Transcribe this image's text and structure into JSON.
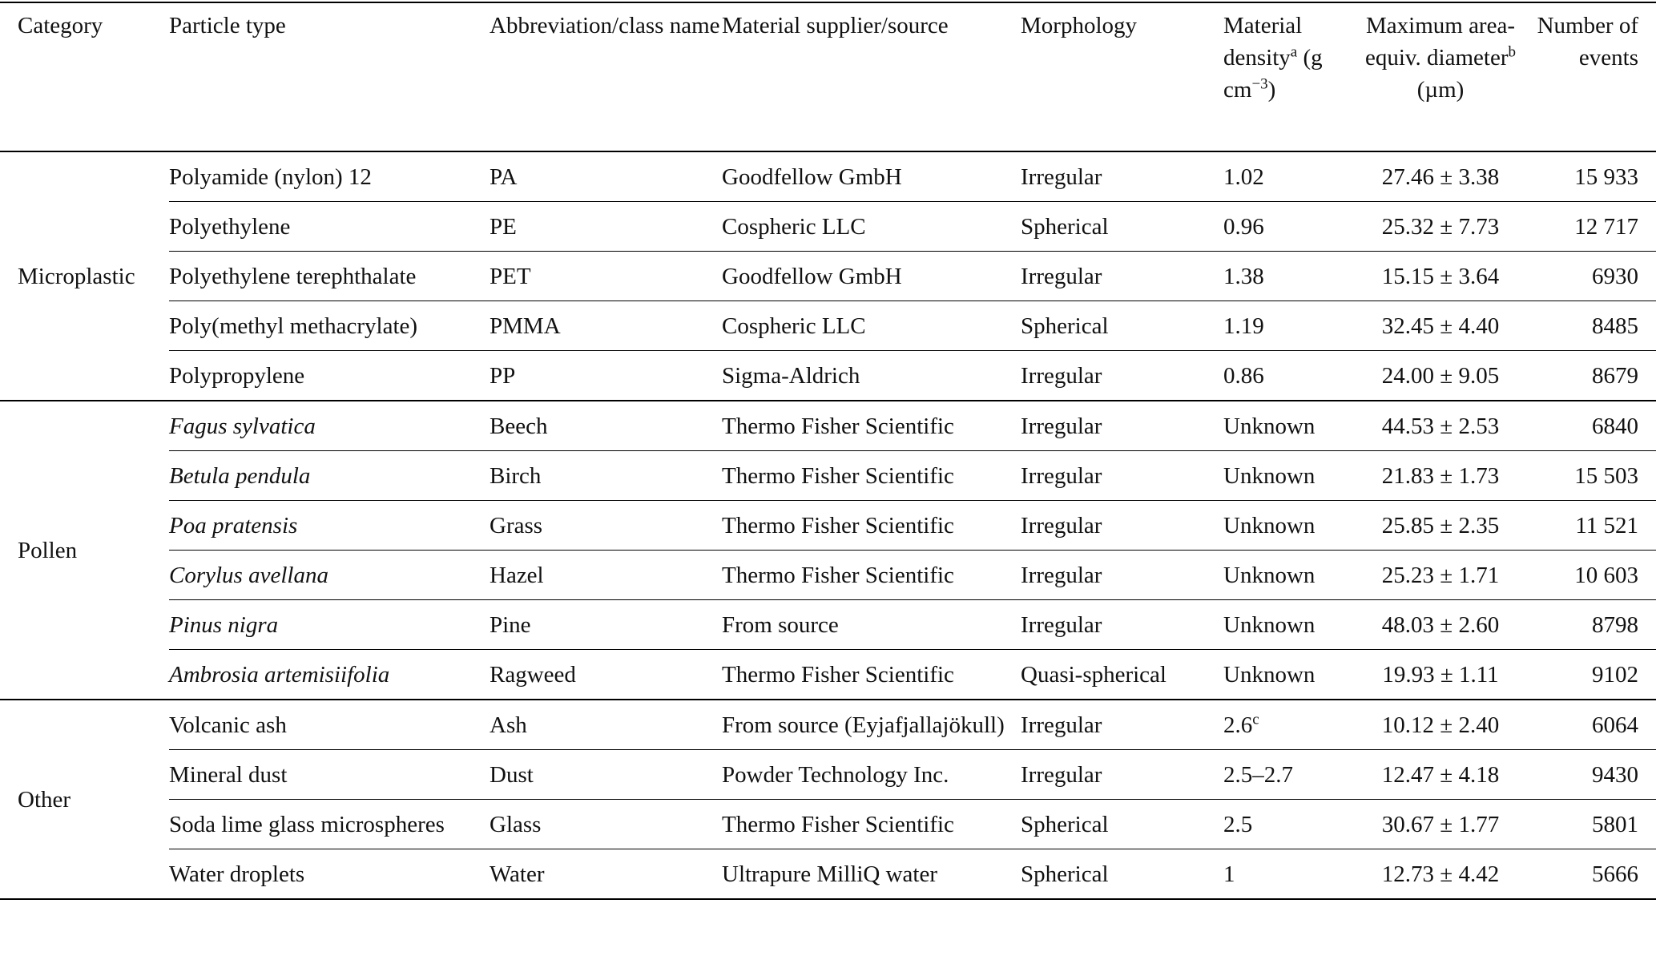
{
  "table": {
    "header": [
      [
        {
          "text": "Category"
        }
      ],
      [
        {
          "text": "Particle type"
        }
      ],
      [
        {
          "text": "Abbreviation/class name"
        }
      ],
      [
        {
          "text": "Material supplier/source"
        }
      ],
      [
        {
          "text": "Morphology"
        }
      ],
      [
        {
          "text": "Material density"
        },
        {
          "sup": "a"
        },
        {
          "text": " (g cm"
        },
        {
          "sup": "−3"
        },
        {
          "text": ")"
        }
      ],
      [
        {
          "text": "Maximum area-equiv. diameter"
        },
        {
          "sup": "b"
        },
        {
          "text": " (µm)"
        }
      ],
      [
        {
          "text": "Number of events"
        }
      ]
    ],
    "groups": [
      {
        "category": "Microplastic",
        "italic": false,
        "rows": [
          [
            "Polyamide (nylon) 12",
            "PA",
            "Goodfellow GmbH",
            "Irregular",
            "1.02",
            "27.46 ± 3.38",
            "15 933"
          ],
          [
            "Polyethylene",
            "PE",
            "Cospheric LLC",
            "Spherical",
            "0.96",
            "25.32 ± 7.73",
            "12 717"
          ],
          [
            "Polyethylene terephthalate",
            "PET",
            "Goodfellow GmbH",
            "Irregular",
            "1.38",
            "15.15 ± 3.64",
            "6930"
          ],
          [
            "Poly(methyl methacrylate)",
            "PMMA",
            "Cospheric LLC",
            "Spherical",
            "1.19",
            "32.45 ± 4.40",
            "8485"
          ],
          [
            "Polypropylene",
            "PP",
            "Sigma-Aldrich",
            "Irregular",
            "0.86",
            "24.00 ± 9.05",
            "8679"
          ]
        ]
      },
      {
        "category": "Pollen",
        "italic": true,
        "rows": [
          [
            "Fagus sylvatica",
            "Beech",
            "Thermo Fisher Scientific",
            "Irregular",
            "Unknown",
            "44.53 ± 2.53",
            "6840"
          ],
          [
            "Betula pendula",
            "Birch",
            "Thermo Fisher Scientific",
            "Irregular",
            "Unknown",
            "21.83 ± 1.73",
            "15 503"
          ],
          [
            "Poa pratensis",
            "Grass",
            "Thermo Fisher Scientific",
            "Irregular",
            "Unknown",
            "25.85 ± 2.35",
            "11 521"
          ],
          [
            "Corylus avellana",
            "Hazel",
            "Thermo Fisher Scientific",
            "Irregular",
            "Unknown",
            "25.23 ± 1.71",
            "10 603"
          ],
          [
            "Pinus nigra",
            "Pine",
            "From source",
            "Irregular",
            "Unknown",
            "48.03 ± 2.60",
            "8798"
          ],
          [
            "Ambrosia artemisiifolia",
            "Ragweed",
            "Thermo Fisher Scientific",
            "Quasi-spherical",
            "Unknown",
            "19.93 ± 1.11",
            "9102"
          ]
        ]
      },
      {
        "category": "Other",
        "italic": false,
        "rows": [
          [
            "Volcanic ash",
            "Ash",
            "From source (Eyjafjallajökull)",
            "Irregular",
            {
              "text": "2.6",
              "sup": "c"
            },
            "10.12 ± 2.40",
            "6064"
          ],
          [
            "Mineral dust",
            "Dust",
            "Powder Technology Inc.",
            "Irregular",
            "2.5–2.7",
            "12.47 ± 4.18",
            "9430"
          ],
          [
            "Soda lime glass microspheres",
            "Glass",
            "Thermo Fisher Scientific",
            "Spherical",
            "2.5",
            "30.67 ± 1.77",
            "5801"
          ],
          [
            "Water droplets",
            "Water",
            "Ultrapure MilliQ water",
            "Spherical",
            "1",
            "12.73 ± 4.42",
            "5666"
          ]
        ]
      }
    ]
  }
}
